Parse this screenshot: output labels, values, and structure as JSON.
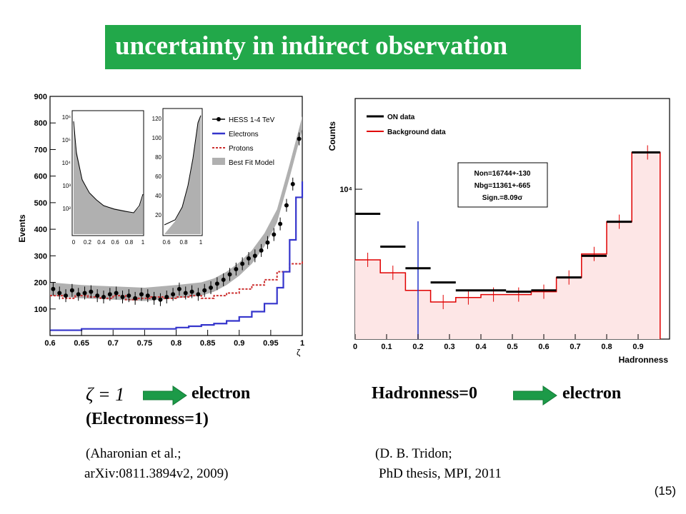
{
  "slide": {
    "title": "uncertainty in indirect observation",
    "page_number": "(15)"
  },
  "left_caption": {
    "symbol": "ζ = 1",
    "result": "electron",
    "note": "(Electronness=1)",
    "citation_line1": "(Aharonian et al.;",
    "citation_line2": "arXiv:0811.3894v2, 2009)"
  },
  "right_caption": {
    "label": "Hadronness=0",
    "result": "electron",
    "citation_line1": "(D. B. Tridon;",
    "citation_line2": "PhD thesis, MPI, 2011"
  },
  "colors": {
    "banner": "#22a84a",
    "arrow": "#1c9a48",
    "electrons": "#3535cc",
    "protons": "#cc3030",
    "best_fit": "#b0b0b0",
    "on_data": "#000000",
    "background_data": "#e00000",
    "background_fill": "#fde6e6",
    "vertical_line": "#2233cc"
  },
  "chart_data": [
    {
      "type": "line",
      "xlabel": "ζ",
      "ylabel": "Events",
      "xlim": [
        0.6,
        1.0
      ],
      "ylim": [
        0,
        900
      ],
      "x_ticks": [
        "0.6",
        "0.65",
        "0.7",
        "0.75",
        "0.8",
        "0.85",
        "0.9",
        "0.95",
        "1"
      ],
      "y_ticks": [
        "100",
        "200",
        "300",
        "400",
        "500",
        "600",
        "700",
        "800",
        "900"
      ],
      "legend": [
        "HESS 1-4 TeV",
        "Electrons",
        "Protons",
        "Best Fit Model"
      ],
      "legend_position": "top-right",
      "series": [
        {
          "name": "HESS 1-4 TeV",
          "x": [
            0.6,
            0.61,
            0.62,
            0.63,
            0.64,
            0.65,
            0.66,
            0.67,
            0.68,
            0.69,
            0.7,
            0.71,
            0.72,
            0.73,
            0.74,
            0.75,
            0.76,
            0.77,
            0.78,
            0.79,
            0.8,
            0.81,
            0.82,
            0.83,
            0.84,
            0.85,
            0.86,
            0.87,
            0.88,
            0.89,
            0.9,
            0.91,
            0.92,
            0.93,
            0.94,
            0.95,
            0.96,
            0.97,
            0.98,
            0.99
          ],
          "y": [
            175,
            160,
            150,
            170,
            155,
            160,
            165,
            150,
            145,
            155,
            160,
            145,
            150,
            140,
            155,
            150,
            140,
            135,
            145,
            155,
            175,
            160,
            165,
            155,
            170,
            180,
            195,
            210,
            230,
            250,
            270,
            290,
            300,
            320,
            350,
            380,
            420,
            490,
            570,
            740
          ]
        },
        {
          "name": "Electrons",
          "x": [
            0.6,
            0.65,
            0.7,
            0.75,
            0.8,
            0.82,
            0.84,
            0.86,
            0.88,
            0.9,
            0.92,
            0.94,
            0.96,
            0.97,
            0.98,
            0.99,
            1.0
          ],
          "y": [
            20,
            25,
            25,
            25,
            30,
            35,
            40,
            45,
            55,
            70,
            90,
            120,
            180,
            240,
            360,
            520,
            580
          ]
        },
        {
          "name": "Protons",
          "x": [
            0.6,
            0.62,
            0.64,
            0.66,
            0.68,
            0.7,
            0.72,
            0.74,
            0.76,
            0.78,
            0.8,
            0.82,
            0.84,
            0.86,
            0.88,
            0.9,
            0.92,
            0.94,
            0.96,
            0.98,
            1.0
          ],
          "y": [
            150,
            140,
            150,
            145,
            140,
            150,
            135,
            140,
            145,
            140,
            145,
            150,
            140,
            150,
            160,
            175,
            190,
            210,
            240,
            270,
            280
          ]
        },
        {
          "name": "Best Fit Model",
          "x": [
            0.6,
            0.65,
            0.7,
            0.75,
            0.8,
            0.84,
            0.86,
            0.88,
            0.9,
            0.92,
            0.94,
            0.96,
            0.98,
            1.0
          ],
          "y": [
            175,
            165,
            160,
            155,
            165,
            175,
            190,
            215,
            250,
            295,
            360,
            450,
            620,
            800
          ]
        }
      ],
      "inset_left": {
        "x_ticks": [
          "0",
          "0.2",
          "0.4",
          "0.6",
          "0.8",
          "1"
        ],
        "y_ticks": [
          "10²",
          "10³",
          "10⁴",
          "10⁵",
          "10⁶"
        ]
      },
      "inset_right": {
        "x_ticks": [
          "0.6",
          "0.8",
          "1"
        ],
        "y_ticks": [
          "20",
          "40",
          "60",
          "80",
          "100",
          "120"
        ]
      }
    },
    {
      "type": "line",
      "xlabel": "Hadronness",
      "ylabel": "Counts",
      "xlim": [
        0,
        1.0
      ],
      "log_y": true,
      "x_ticks": [
        "0",
        "0.1",
        "0.2",
        "0.3",
        "0.4",
        "0.5",
        "0.6",
        "0.7",
        "0.8",
        "0.9"
      ],
      "y_ticks": [
        "10⁴"
      ],
      "legend": [
        "ON data",
        "Background data"
      ],
      "legend_position": "top-left",
      "annotation": [
        "Non=16744+-130",
        "Nbg=11361+-665",
        "Sign.=8.09σ"
      ],
      "vertical_line_x": 0.2,
      "series": [
        {
          "name": "ON data",
          "x": [
            0.04,
            0.12,
            0.2,
            0.28,
            0.36,
            0.44,
            0.52,
            0.6,
            0.68,
            0.76,
            0.84,
            0.93
          ],
          "y": [
            7800,
            5600,
            4500,
            3900,
            3600,
            3600,
            3550,
            3600,
            4100,
            5100,
            7200,
            14500
          ]
        },
        {
          "name": "Background data",
          "x": [
            0.04,
            0.12,
            0.2,
            0.28,
            0.36,
            0.44,
            0.52,
            0.6,
            0.68,
            0.76,
            0.84,
            0.93
          ],
          "y": [
            4900,
            4300,
            3600,
            3200,
            3350,
            3450,
            3450,
            3550,
            4100,
            5200,
            7200,
            14500
          ]
        }
      ]
    }
  ]
}
